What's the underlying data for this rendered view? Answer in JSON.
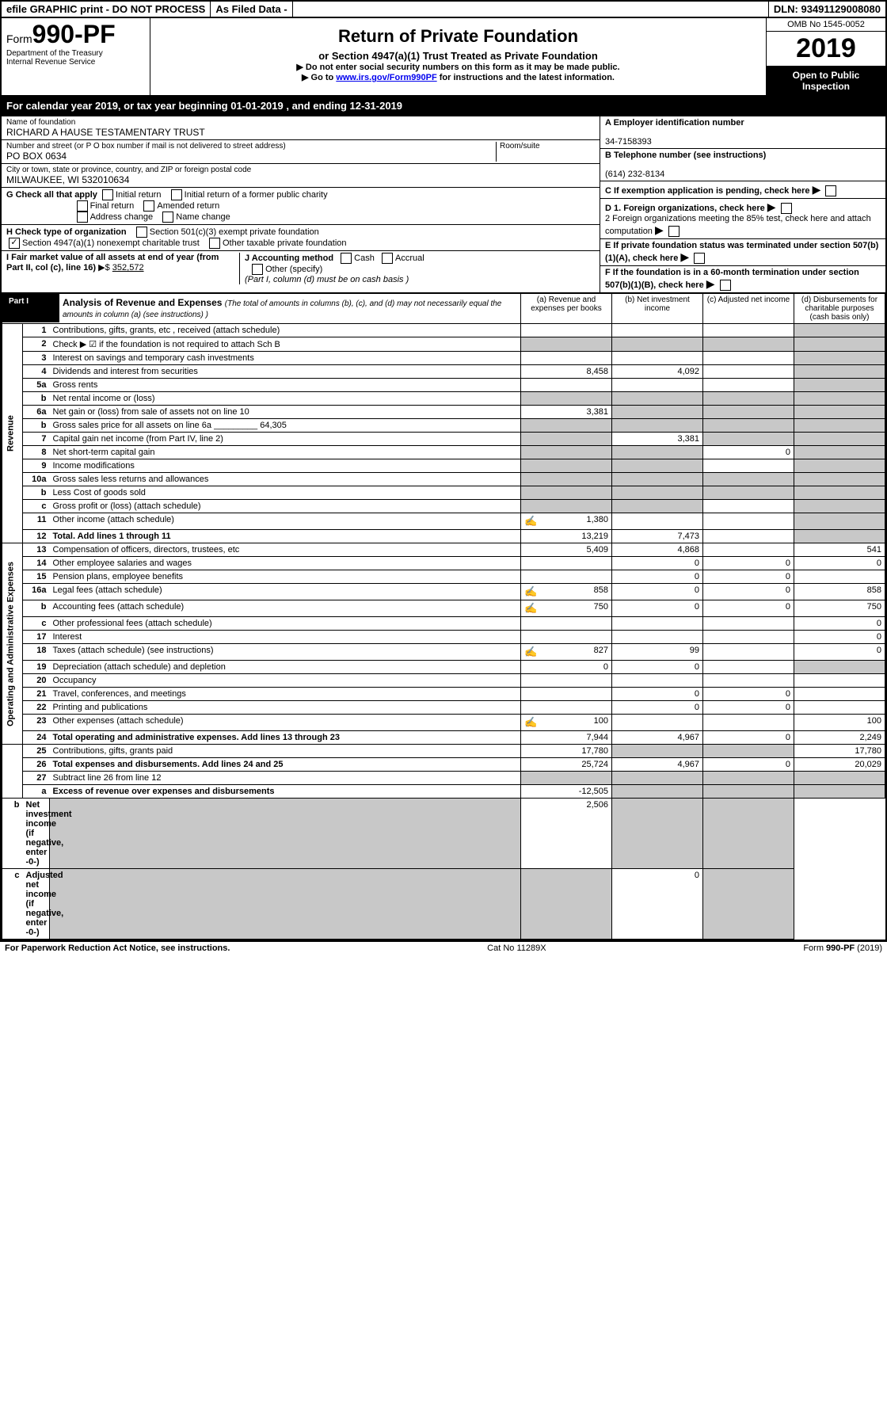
{
  "top_bar": {
    "efile": "efile GRAPHIC print - DO NOT PROCESS",
    "filed": "As Filed Data -",
    "dln": "DLN: 93491129008080"
  },
  "header": {
    "form_prefix": "Form",
    "form_number": "990-PF",
    "dept1": "Department of the Treasury",
    "dept2": "Internal Revenue Service",
    "title": "Return of Private Foundation",
    "subtitle": "or Section 4947(a)(1) Trust Treated as Private Foundation",
    "note1_prefix": "▶ Do not enter social security numbers on this form as it may be made public.",
    "note2_prefix": "▶ Go to ",
    "note2_link": "www.irs.gov/Form990PF",
    "note2_suffix": " for instructions and the latest information.",
    "omb": "OMB No 1545-0052",
    "year": "2019",
    "open_public": "Open to Public Inspection"
  },
  "cal_year": {
    "prefix": "For calendar year 2019, or tax year beginning ",
    "begin": "01-01-2019",
    "mid": " , and ending ",
    "end": "12-31-2019"
  },
  "org": {
    "name_label": "Name of foundation",
    "name": "RICHARD A HAUSE TESTAMENTARY TRUST",
    "addr_label": "Number and street (or P O  box number if mail is not delivered to street address)",
    "room_label": "Room/suite",
    "addr": "PO BOX 0634",
    "city_label": "City or town, state or province, country, and ZIP or foreign postal code",
    "city": "MILWAUKEE, WI  532010634",
    "ein_label": "A Employer identification number",
    "ein": "34-7158393",
    "phone_label": "B Telephone number (see instructions)",
    "phone": "(614) 232-8134",
    "c_label": "C If exemption application is pending, check here",
    "d1_label": "D 1. Foreign organizations, check here",
    "d2_label": "2 Foreign organizations meeting the 85% test, check here and attach computation",
    "e_label": "E  If private foundation status was terminated under section 507(b)(1)(A), check here",
    "f_label": "F  If the foundation is in a 60-month termination under section 507(b)(1)(B), check here"
  },
  "g": {
    "label": "G Check all that apply",
    "o1": "Initial return",
    "o2": "Initial return of a former public charity",
    "o3": "Final return",
    "o4": "Amended return",
    "o5": "Address change",
    "o6": "Name change"
  },
  "h": {
    "label": "H Check type of organization",
    "o1": "Section 501(c)(3) exempt private foundation",
    "o2": "Section 4947(a)(1) nonexempt charitable trust",
    "o3": "Other taxable private foundation"
  },
  "i": {
    "label": "I Fair market value of all assets at end of year (from Part II, col  (c), line 16)",
    "prefix": "▶$ ",
    "value": "352,572"
  },
  "j": {
    "label": "J Accounting method",
    "o1": "Cash",
    "o2": "Accrual",
    "o3": "Other (specify)",
    "note": "(Part I, column (d) must be on cash basis )"
  },
  "part1": {
    "label": "Part I",
    "title": "Analysis of Revenue and Expenses",
    "title_note": "(The total of amounts in columns (b), (c), and (d) may not necessarily equal the amounts in column (a) (see instructions) )",
    "col_a": "(a) Revenue and expenses per books",
    "col_b": "(b) Net investment income",
    "col_c": "(c) Adjusted net income",
    "col_d": "(d) Disbursements for charitable purposes (cash basis only)",
    "rev_label": "Revenue",
    "exp_label": "Operating and Administrative Expenses"
  },
  "rows": [
    {
      "n": "1",
      "d": "Contributions, gifts, grants, etc , received (attach schedule)",
      "a": "",
      "b": "",
      "c": "",
      "dcol": "",
      "d_shade": true
    },
    {
      "n": "2",
      "d": "Check ▶ ☑ if the foundation is not required to attach Sch B",
      "a": "",
      "b": "",
      "c": "",
      "dcol": "",
      "a_shade": true,
      "b_shade": true,
      "c_shade": true,
      "d_shade": true
    },
    {
      "n": "3",
      "d": "Interest on savings and temporary cash investments",
      "a": "",
      "b": "",
      "c": "",
      "dcol": "",
      "d_shade": true
    },
    {
      "n": "4",
      "d": "Dividends and interest from securities",
      "a": "8,458",
      "b": "4,092",
      "c": "",
      "dcol": "",
      "d_shade": true
    },
    {
      "n": "5a",
      "d": "Gross rents",
      "a": "",
      "b": "",
      "c": "",
      "dcol": "",
      "d_shade": true
    },
    {
      "n": "b",
      "d": "Net rental income or (loss)",
      "a": "",
      "b": "",
      "c": "",
      "dcol": "",
      "a_shade": true,
      "b_shade": true,
      "c_shade": true,
      "d_shade": true
    },
    {
      "n": "6a",
      "d": "Net gain or (loss) from sale of assets not on line 10",
      "a": "3,381",
      "b": "",
      "c": "",
      "dcol": "",
      "b_shade": true,
      "c_shade": true,
      "d_shade": true
    },
    {
      "n": "b",
      "d": "Gross sales price for all assets on line 6a _________ 64,305",
      "a": "",
      "b": "",
      "c": "",
      "dcol": "",
      "a_shade": true,
      "b_shade": true,
      "c_shade": true,
      "d_shade": true
    },
    {
      "n": "7",
      "d": "Capital gain net income (from Part IV, line 2)",
      "a": "",
      "b": "3,381",
      "c": "",
      "dcol": "",
      "a_shade": true,
      "c_shade": true,
      "d_shade": true
    },
    {
      "n": "8",
      "d": "Net short-term capital gain",
      "a": "",
      "b": "",
      "c": "0",
      "dcol": "",
      "a_shade": true,
      "b_shade": true,
      "d_shade": true
    },
    {
      "n": "9",
      "d": "Income modifications",
      "a": "",
      "b": "",
      "c": "",
      "dcol": "",
      "a_shade": true,
      "b_shade": true,
      "d_shade": true
    },
    {
      "n": "10a",
      "d": "Gross sales less returns and allowances",
      "a": "",
      "b": "",
      "c": "",
      "dcol": "",
      "a_shade": true,
      "b_shade": true,
      "c_shade": true,
      "d_shade": true
    },
    {
      "n": "b",
      "d": "Less  Cost of goods sold",
      "a": "",
      "b": "",
      "c": "",
      "dcol": "",
      "a_shade": true,
      "b_shade": true,
      "c_shade": true,
      "d_shade": true
    },
    {
      "n": "c",
      "d": "Gross profit or (loss) (attach schedule)",
      "a": "",
      "b": "",
      "c": "",
      "dcol": "",
      "a_shade": true,
      "b_shade": true,
      "d_shade": true
    },
    {
      "n": "11",
      "d": "Other income (attach schedule)",
      "a": "1,380",
      "b": "",
      "c": "",
      "dcol": "",
      "icon": true,
      "d_shade": true
    },
    {
      "n": "12",
      "d": "Total. Add lines 1 through 11",
      "a": "13,219",
      "b": "7,473",
      "c": "",
      "dcol": "",
      "bold": true,
      "d_shade": true
    },
    {
      "n": "13",
      "d": "Compensation of officers, directors, trustees, etc",
      "a": "5,409",
      "b": "4,868",
      "c": "",
      "dcol": "541"
    },
    {
      "n": "14",
      "d": "Other employee salaries and wages",
      "a": "",
      "b": "0",
      "c": "0",
      "dcol": "0"
    },
    {
      "n": "15",
      "d": "Pension plans, employee benefits",
      "a": "",
      "b": "0",
      "c": "0",
      "dcol": ""
    },
    {
      "n": "16a",
      "d": "Legal fees (attach schedule)",
      "a": "858",
      "b": "0",
      "c": "0",
      "dcol": "858",
      "icon": true
    },
    {
      "n": "b",
      "d": "Accounting fees (attach schedule)",
      "a": "750",
      "b": "0",
      "c": "0",
      "dcol": "750",
      "icon": true
    },
    {
      "n": "c",
      "d": "Other professional fees (attach schedule)",
      "a": "",
      "b": "",
      "c": "",
      "dcol": "0"
    },
    {
      "n": "17",
      "d": "Interest",
      "a": "",
      "b": "",
      "c": "",
      "dcol": "0"
    },
    {
      "n": "18",
      "d": "Taxes (attach schedule) (see instructions)",
      "a": "827",
      "b": "99",
      "c": "",
      "dcol": "0",
      "icon": true
    },
    {
      "n": "19",
      "d": "Depreciation (attach schedule) and depletion",
      "a": "0",
      "b": "0",
      "c": "",
      "dcol": "",
      "d_shade": true
    },
    {
      "n": "20",
      "d": "Occupancy",
      "a": "",
      "b": "",
      "c": "",
      "dcol": ""
    },
    {
      "n": "21",
      "d": "Travel, conferences, and meetings",
      "a": "",
      "b": "0",
      "c": "0",
      "dcol": ""
    },
    {
      "n": "22",
      "d": "Printing and publications",
      "a": "",
      "b": "0",
      "c": "0",
      "dcol": ""
    },
    {
      "n": "23",
      "d": "Other expenses (attach schedule)",
      "a": "100",
      "b": "",
      "c": "",
      "dcol": "100",
      "icon": true
    },
    {
      "n": "24",
      "d": "Total operating and administrative expenses. Add lines 13 through 23",
      "a": "7,944",
      "b": "4,967",
      "c": "0",
      "dcol": "2,249",
      "bold": true
    },
    {
      "n": "25",
      "d": "Contributions, gifts, grants paid",
      "a": "17,780",
      "b": "",
      "c": "",
      "dcol": "17,780",
      "b_shade": true,
      "c_shade": true
    },
    {
      "n": "26",
      "d": "Total expenses and disbursements. Add lines 24 and 25",
      "a": "25,724",
      "b": "4,967",
      "c": "0",
      "dcol": "20,029",
      "bold": true
    },
    {
      "n": "27",
      "d": "Subtract line 26 from line 12",
      "a": "",
      "b": "",
      "c": "",
      "dcol": "",
      "a_shade": true,
      "b_shade": true,
      "c_shade": true,
      "d_shade": true
    },
    {
      "n": "a",
      "d": "Excess of revenue over expenses and disbursements",
      "a": "-12,505",
      "b": "",
      "c": "",
      "dcol": "",
      "bold": true,
      "b_shade": true,
      "c_shade": true,
      "d_shade": true
    },
    {
      "n": "b",
      "d": "Net investment income (if negative, enter -0-)",
      "a": "",
      "b": "2,506",
      "c": "",
      "dcol": "",
      "bold": true,
      "a_shade": true,
      "c_shade": true,
      "d_shade": true
    },
    {
      "n": "c",
      "d": "Adjusted net income (if negative, enter -0-)",
      "a": "",
      "b": "",
      "c": "0",
      "dcol": "",
      "bold": true,
      "a_shade": true,
      "b_shade": true,
      "d_shade": true
    }
  ],
  "footer": {
    "left": "For Paperwork Reduction Act Notice, see instructions.",
    "mid": "Cat No 11289X",
    "right": "Form 990-PF (2019)"
  },
  "colors": {
    "black": "#000000",
    "white": "#ffffff",
    "shade": "#c8c8c8",
    "link": "#0000ee"
  }
}
